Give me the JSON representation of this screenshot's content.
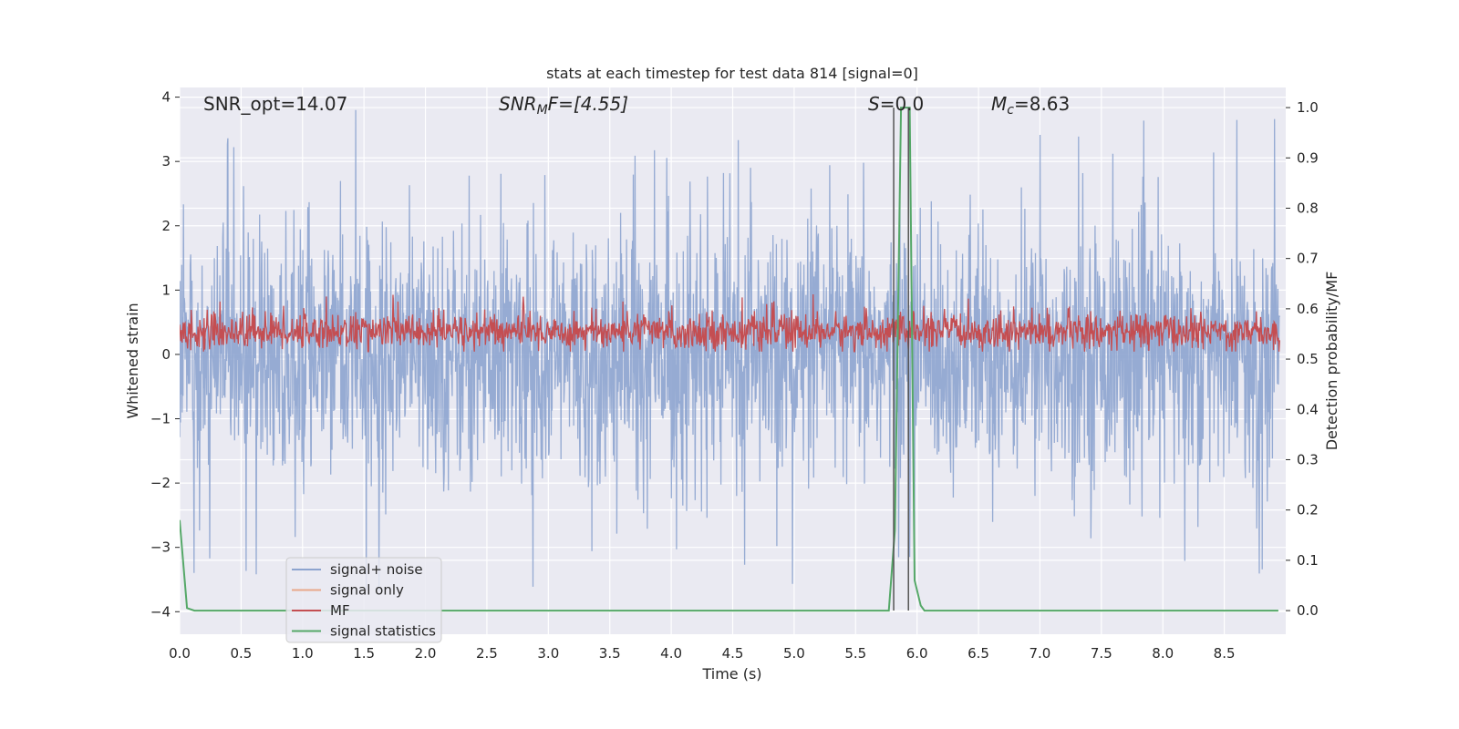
{
  "chart_data": {
    "type": "line",
    "title": "stats at each timestep for test data 814 [signal=0]",
    "xlabel": "Time (s)",
    "ylabel": "Whitened strain",
    "ylabel_right": "Detection probability/MF",
    "xlim": [
      0.0,
      9.0
    ],
    "ylim": [
      -4.35,
      4.15
    ],
    "ylim_right": [
      -0.047,
      1.04
    ],
    "x_ticks": [
      0.0,
      0.5,
      1.0,
      1.5,
      2.0,
      2.5,
      3.0,
      3.5,
      4.0,
      4.5,
      5.0,
      5.5,
      6.0,
      6.5,
      7.0,
      7.5,
      8.0,
      8.5
    ],
    "x_tick_labels": [
      "0.0",
      "0.5",
      "1.0",
      "1.5",
      "2.0",
      "2.5",
      "3.0",
      "3.5",
      "4.0",
      "4.5",
      "5.0",
      "5.5",
      "6.0",
      "6.5",
      "7.0",
      "7.5",
      "8.0",
      "8.5"
    ],
    "y_ticks": [
      -4,
      -3,
      -2,
      -1,
      0,
      1,
      2,
      3,
      4
    ],
    "y_tick_labels": [
      "−4",
      "−3",
      "−2",
      "−1",
      "0",
      "1",
      "2",
      "3",
      "4"
    ],
    "y_ticks_right": [
      0.0,
      0.1,
      0.2,
      0.3,
      0.4,
      0.5,
      0.6,
      0.7,
      0.8,
      0.9,
      1.0
    ],
    "y_tick_labels_right": [
      "0.0",
      "0.1",
      "0.2",
      "0.3",
      "0.4",
      "0.5",
      "0.6",
      "0.7",
      "0.8",
      "0.9",
      "1.0"
    ],
    "grid": true,
    "legend_position": "lower-left",
    "annotations": {
      "snr_opt": "SNR_opt=14.07",
      "snr_mf_italic": "SNR",
      "snr_mf_sub": "M",
      "snr_mf_rest": "F=[4.55]",
      "s_italic": "S",
      "s_rest": "=0.0",
      "mc_italic": "M",
      "mc_sub": "c",
      "mc_rest": "=8.63"
    },
    "series": [
      {
        "name": "signal+ noise",
        "color": "#8da4cf",
        "axis": "left",
        "style": "noise",
        "approx_envelope": [
          -1.7,
          1.7
        ],
        "peak_range": [
          -3.3,
          3.8
        ]
      },
      {
        "name": "signal only",
        "color": "#e8a88a",
        "axis": "left",
        "style": "line",
        "x": [],
        "y": []
      },
      {
        "name": "MF",
        "color": "#c44e52",
        "axis": "right",
        "style": "noise",
        "approx_range": [
          0.52,
          0.62
        ]
      },
      {
        "name": "signal statistics",
        "color": "#55a868",
        "axis": "right",
        "style": "line",
        "x": [
          0.0,
          0.06,
          0.12,
          0.5,
          1.0,
          2.0,
          3.0,
          4.0,
          5.0,
          5.5,
          5.77,
          5.82,
          5.87,
          5.9,
          5.94,
          5.98,
          6.03,
          6.06,
          6.25,
          7.0,
          8.0,
          8.94
        ],
        "y": [
          0.18,
          0.005,
          0.0,
          0.0,
          0.0,
          0.0,
          0.0,
          0.0,
          0.0,
          0.0,
          0.0,
          0.16,
          1.0,
          1.0,
          1.0,
          0.06,
          0.01,
          0.0,
          0.0,
          0.0,
          0.0,
          0.0
        ]
      },
      {
        "name": "",
        "color": "#555555",
        "axis": "right",
        "style": "vlines",
        "x": [
          5.81,
          5.93
        ],
        "y": [
          0.0,
          1.0
        ]
      }
    ]
  }
}
